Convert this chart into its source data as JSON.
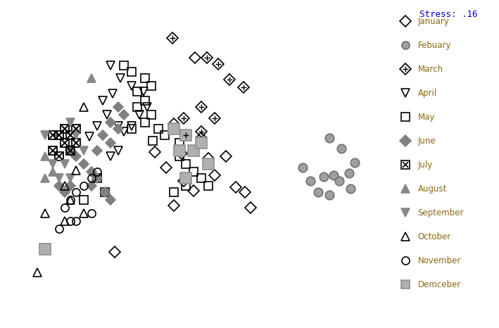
{
  "stress_text": "Stress: .16",
  "stress_color": "#0000CC",
  "bg_color": "#FFFFFF",
  "legend_text_color": "#8B6914",
  "months": [
    "January",
    "Febuary",
    "March",
    "April",
    "May",
    "June",
    "July",
    "August",
    "September",
    "October",
    "November",
    "Demceber"
  ],
  "jan_points": [
    [
      0.495,
      0.855
    ],
    [
      0.44,
      0.64
    ],
    [
      0.51,
      0.595
    ],
    [
      0.46,
      0.545
    ],
    [
      0.53,
      0.53
    ],
    [
      0.575,
      0.535
    ],
    [
      0.545,
      0.475
    ],
    [
      0.6,
      0.435
    ],
    [
      0.49,
      0.425
    ],
    [
      0.625,
      0.42
    ],
    [
      0.64,
      0.37
    ],
    [
      0.44,
      0.375
    ],
    [
      0.39,
      0.55
    ],
    [
      0.42,
      0.5
    ],
    [
      0.465,
      0.455
    ],
    [
      0.285,
      0.225
    ]
  ],
  "feb_points": [
    [
      0.845,
      0.595
    ],
    [
      0.875,
      0.56
    ],
    [
      0.91,
      0.515
    ],
    [
      0.895,
      0.48
    ],
    [
      0.855,
      0.475
    ],
    [
      0.83,
      0.47
    ],
    [
      0.87,
      0.455
    ],
    [
      0.9,
      0.43
    ],
    [
      0.845,
      0.41
    ],
    [
      0.815,
      0.42
    ],
    [
      0.795,
      0.455
    ],
    [
      0.775,
      0.5
    ]
  ],
  "mar_points": [
    [
      0.435,
      0.92
    ],
    [
      0.525,
      0.855
    ],
    [
      0.555,
      0.835
    ],
    [
      0.585,
      0.785
    ],
    [
      0.62,
      0.76
    ],
    [
      0.51,
      0.695
    ],
    [
      0.545,
      0.66
    ],
    [
      0.51,
      0.615
    ],
    [
      0.47,
      0.605
    ],
    [
      0.465,
      0.66
    ]
  ],
  "apr_points": [
    [
      0.275,
      0.83
    ],
    [
      0.3,
      0.79
    ],
    [
      0.33,
      0.765
    ],
    [
      0.36,
      0.745
    ],
    [
      0.37,
      0.695
    ],
    [
      0.35,
      0.67
    ],
    [
      0.33,
      0.635
    ],
    [
      0.31,
      0.615
    ],
    [
      0.295,
      0.635
    ],
    [
      0.265,
      0.67
    ],
    [
      0.255,
      0.715
    ],
    [
      0.28,
      0.74
    ],
    [
      0.22,
      0.6
    ],
    [
      0.24,
      0.635
    ],
    [
      0.295,
      0.555
    ],
    [
      0.275,
      0.535
    ]
  ],
  "may_points": [
    [
      0.31,
      0.83
    ],
    [
      0.33,
      0.81
    ],
    [
      0.365,
      0.79
    ],
    [
      0.38,
      0.765
    ],
    [
      0.345,
      0.745
    ],
    [
      0.365,
      0.715
    ],
    [
      0.345,
      0.695
    ],
    [
      0.38,
      0.67
    ],
    [
      0.365,
      0.645
    ],
    [
      0.4,
      0.625
    ],
    [
      0.33,
      0.625
    ],
    [
      0.415,
      0.605
    ],
    [
      0.455,
      0.58
    ],
    [
      0.385,
      0.585
    ],
    [
      0.455,
      0.535
    ],
    [
      0.47,
      0.51
    ],
    [
      0.49,
      0.485
    ],
    [
      0.51,
      0.465
    ],
    [
      0.53,
      0.44
    ],
    [
      0.47,
      0.44
    ],
    [
      0.44,
      0.42
    ],
    [
      0.24,
      0.465
    ],
    [
      0.26,
      0.42
    ],
    [
      0.205,
      0.395
    ]
  ],
  "jun_points": [
    [
      0.295,
      0.695
    ],
    [
      0.31,
      0.67
    ],
    [
      0.275,
      0.645
    ],
    [
      0.295,
      0.625
    ],
    [
      0.255,
      0.605
    ],
    [
      0.275,
      0.58
    ],
    [
      0.24,
      0.555
    ],
    [
      0.17,
      0.555
    ],
    [
      0.185,
      0.535
    ],
    [
      0.205,
      0.51
    ],
    [
      0.225,
      0.485
    ],
    [
      0.24,
      0.465
    ],
    [
      0.225,
      0.44
    ],
    [
      0.26,
      0.42
    ],
    [
      0.275,
      0.395
    ],
    [
      0.17,
      0.44
    ],
    [
      0.155,
      0.42
    ],
    [
      0.14,
      0.44
    ]
  ],
  "jul_points": [
    [
      0.17,
      0.605
    ],
    [
      0.185,
      0.58
    ],
    [
      0.155,
      0.58
    ],
    [
      0.17,
      0.555
    ],
    [
      0.14,
      0.605
    ],
    [
      0.155,
      0.625
    ],
    [
      0.185,
      0.625
    ],
    [
      0.14,
      0.535
    ],
    [
      0.125,
      0.555
    ],
    [
      0.125,
      0.605
    ]
  ],
  "aug_points": [
    [
      0.225,
      0.79
    ],
    [
      0.105,
      0.535
    ],
    [
      0.125,
      0.485
    ],
    [
      0.105,
      0.465
    ]
  ],
  "sep_points": [
    [
      0.17,
      0.645
    ],
    [
      0.185,
      0.605
    ],
    [
      0.205,
      0.555
    ],
    [
      0.155,
      0.51
    ],
    [
      0.17,
      0.465
    ],
    [
      0.14,
      0.465
    ],
    [
      0.125,
      0.51
    ],
    [
      0.105,
      0.605
    ]
  ],
  "oct_points": [
    [
      0.205,
      0.695
    ],
    [
      0.185,
      0.49
    ],
    [
      0.155,
      0.44
    ],
    [
      0.17,
      0.395
    ],
    [
      0.205,
      0.35
    ],
    [
      0.155,
      0.325
    ],
    [
      0.105,
      0.35
    ],
    [
      0.085,
      0.16
    ]
  ],
  "nov_points": [
    [
      0.24,
      0.485
    ],
    [
      0.225,
      0.465
    ],
    [
      0.205,
      0.44
    ],
    [
      0.185,
      0.42
    ],
    [
      0.17,
      0.395
    ],
    [
      0.155,
      0.37
    ],
    [
      0.17,
      0.325
    ],
    [
      0.14,
      0.3
    ],
    [
      0.225,
      0.35
    ],
    [
      0.185,
      0.325
    ]
  ],
  "dec_points": [
    [
      0.44,
      0.625
    ],
    [
      0.47,
      0.605
    ],
    [
      0.49,
      0.555
    ],
    [
      0.53,
      0.51
    ],
    [
      0.51,
      0.58
    ],
    [
      0.455,
      0.555
    ],
    [
      0.47,
      0.465
    ],
    [
      0.105,
      0.235
    ]
  ],
  "xlim": [
    0.0,
    1.0
  ],
  "ylim": [
    0.0,
    1.0
  ],
  "gray_marker": "#A0A0A0",
  "dark_gray_marker": "#808080",
  "legend_marker_color": "#606060"
}
